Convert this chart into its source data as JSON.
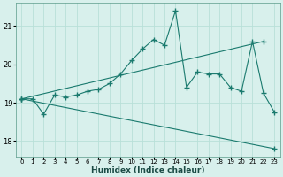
{
  "title": "",
  "xlabel": "Humidex (Indice chaleur)",
  "bg_color": "#d8f0ec",
  "line_color": "#1a7a6e",
  "grid_color": "#b8e0d8",
  "xlim": [
    -0.5,
    23.5
  ],
  "ylim": [
    17.6,
    21.6
  ],
  "yticks": [
    18,
    19,
    20,
    21
  ],
  "xticks": [
    0,
    1,
    2,
    3,
    4,
    5,
    6,
    7,
    8,
    9,
    10,
    11,
    12,
    13,
    14,
    15,
    16,
    17,
    18,
    19,
    20,
    21,
    22,
    23
  ],
  "line1_x": [
    0,
    1,
    2,
    3,
    4,
    5,
    6,
    7,
    8,
    9,
    10,
    11,
    12,
    13,
    14,
    15,
    16,
    17,
    18,
    19,
    20,
    21,
    22,
    23
  ],
  "line1_y": [
    19.1,
    19.1,
    18.7,
    19.2,
    19.15,
    19.2,
    19.3,
    19.35,
    19.5,
    19.75,
    20.1,
    20.4,
    20.65,
    20.5,
    21.4,
    19.4,
    19.8,
    19.75,
    19.75,
    19.4,
    19.3,
    20.6,
    19.25,
    18.75
  ],
  "line2_x": [
    0,
    22
  ],
  "line2_y": [
    19.1,
    20.6
  ],
  "line3_x": [
    0,
    23
  ],
  "line3_y": [
    19.1,
    17.8
  ]
}
